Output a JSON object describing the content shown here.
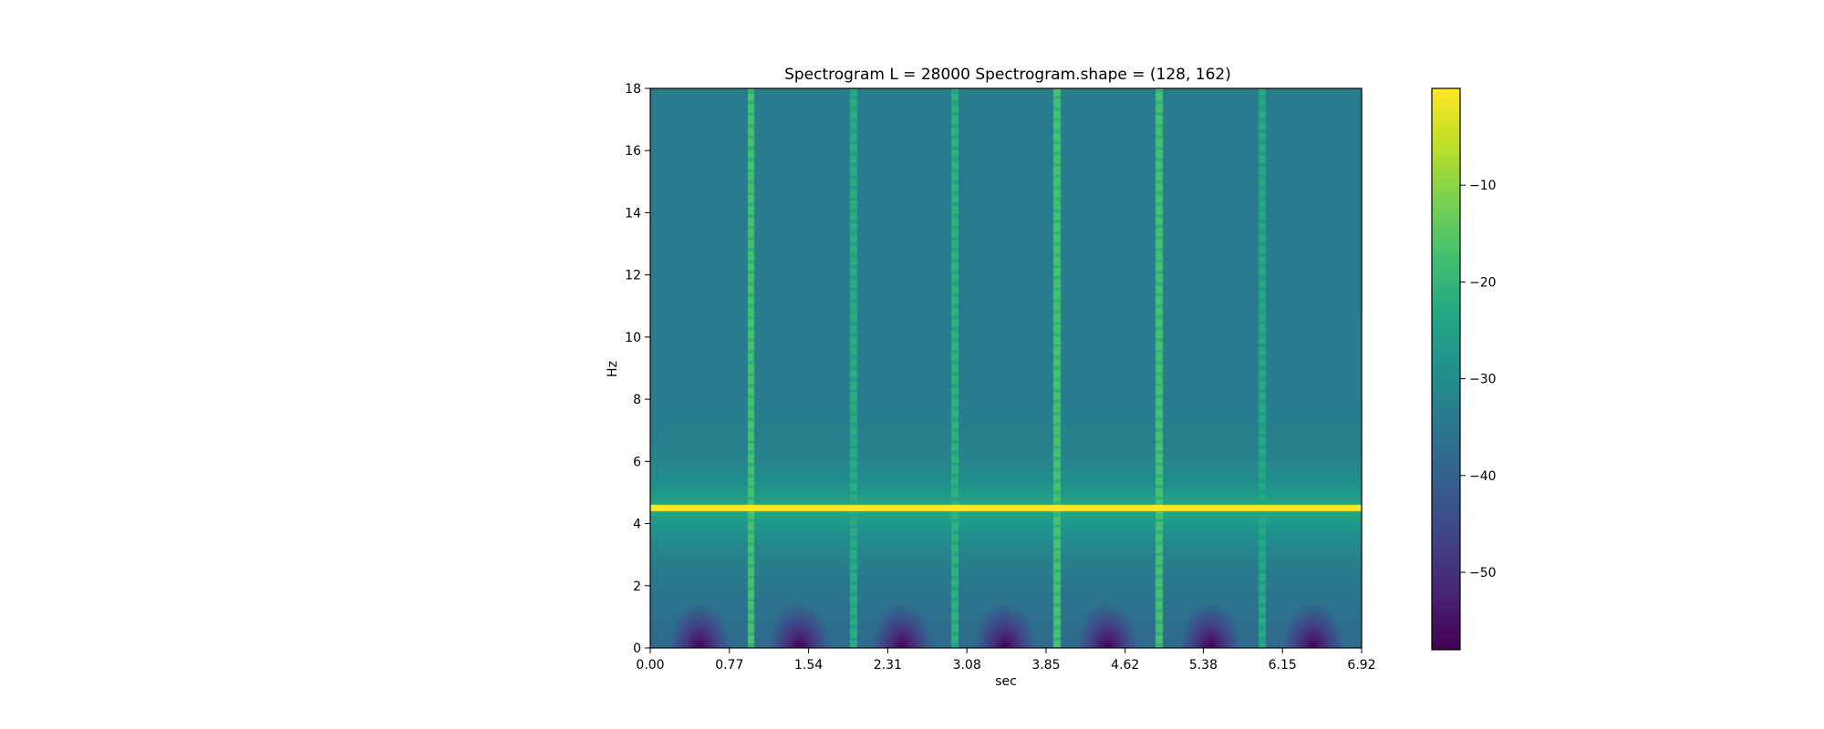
{
  "chart_data": {
    "type": "heatmap",
    "title": "Spectrogram L = 28000 Spectrogram.shape = (128, 162)",
    "xlabel": "sec",
    "ylabel": "Hz",
    "xlim": [
      0,
      6.92
    ],
    "ylim": [
      0,
      18
    ],
    "x_ticks": [
      "0.00",
      "0.77",
      "1.54",
      "2.31",
      "3.08",
      "3.85",
      "4.62",
      "5.38",
      "6.15",
      "6.92"
    ],
    "x_tick_values": [
      0.0,
      0.77,
      1.54,
      2.31,
      3.08,
      3.85,
      4.62,
      5.38,
      6.15,
      6.92
    ],
    "y_ticks": [
      "0",
      "2",
      "4",
      "6",
      "8",
      "10",
      "12",
      "14",
      "16",
      "18"
    ],
    "y_tick_values": [
      0,
      2,
      4,
      6,
      8,
      10,
      12,
      14,
      16,
      18
    ],
    "colorbar": {
      "colormap": "viridis",
      "range": [
        -58,
        0
      ],
      "ticks": [
        "−10",
        "−20",
        "−30",
        "−40",
        "−50"
      ],
      "tick_values": [
        -10,
        -20,
        -30,
        -40,
        -50
      ]
    },
    "features": {
      "tone_frequency_hz": 4.5,
      "tone_level_db": 0,
      "background_level_db": -37,
      "transient_times_sec": [
        0.98,
        1.98,
        2.96,
        3.96,
        4.95,
        5.95
      ],
      "transient_levels_db": [
        -17,
        -22,
        -21,
        -17,
        -17,
        -23
      ],
      "low_freq_minima_times_sec": [
        0.48,
        1.45,
        2.45,
        3.45,
        4.45,
        5.45,
        6.45
      ],
      "low_freq_min_level_db": -58
    }
  }
}
